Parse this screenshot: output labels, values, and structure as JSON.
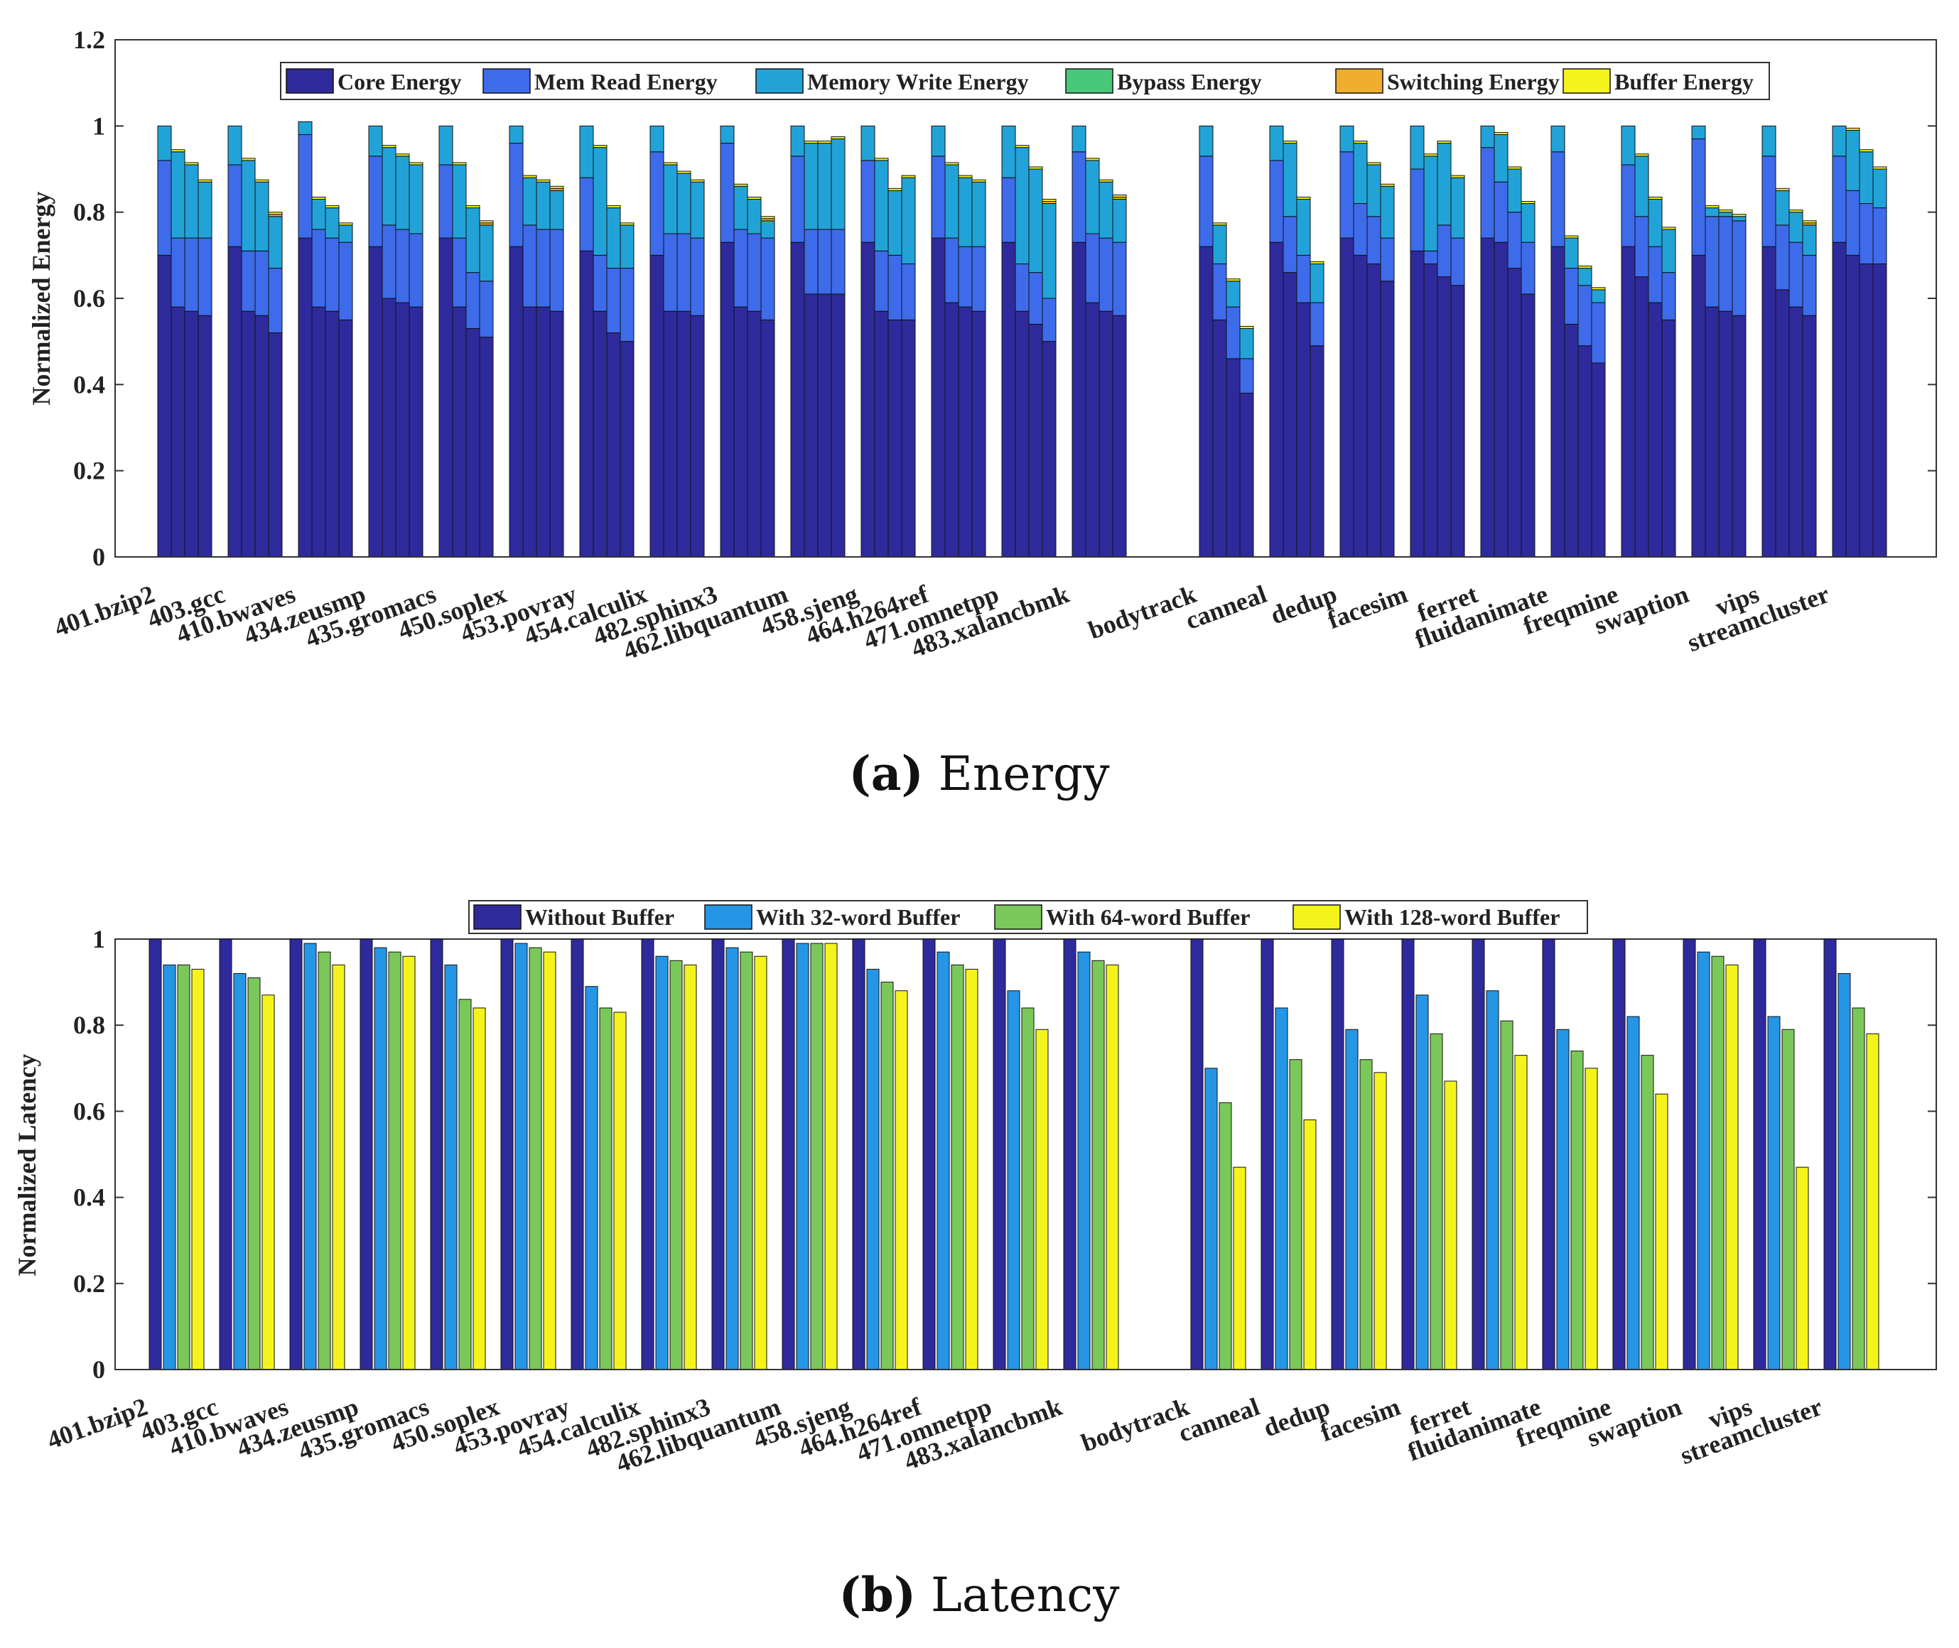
{
  "colors": {
    "core": "#2E2A9C",
    "mem_read": "#3D6BEA",
    "mem_write": "#22A3D8",
    "bypass": "#48C878",
    "switching": "#F0AE2E",
    "buffer": "#F4F41C",
    "lat_without": "#2E2A9C",
    "lat_32": "#2596E6",
    "lat_64": "#7BC85A",
    "lat_128": "#F4F41C"
  },
  "chart_data": [
    {
      "type": "bar",
      "stacked": true,
      "title": "",
      "ylabel": "Normalized Energy",
      "xlabel": "",
      "ylim": [
        0,
        1.2
      ],
      "yticks": [
        "0",
        "0.2",
        "0.4",
        "0.6",
        "0.8",
        "1",
        "1.2"
      ],
      "caption_letter": "(a)",
      "caption_text": " Energy",
      "categories": [
        "401.bzip2",
        "403.gcc",
        "410.bwaves",
        "434.zeusmp",
        "435.gromacs",
        "450.soplex",
        "453.povray",
        "454.calculix",
        "482.sphinx3",
        "462.libquantum",
        "458.sjeng",
        "464.h264ref",
        "471.omnetpp",
        "483.xalancbmk",
        "bodytrack",
        "canneal",
        "dedup",
        "facesim",
        "ferret",
        "fluidanimate",
        "freqmine",
        "swaption",
        "vips",
        "streamcluster"
      ],
      "legend": [
        "Core Energy",
        "Mem Read Energy",
        "Memory Write Energy",
        "Bypass Energy",
        "Switching Energy",
        "Buffer Energy"
      ],
      "bars_per_group": 4,
      "groups": [
        [
          [
            0.7,
            0.22,
            0.08,
            0,
            0,
            0
          ],
          [
            0.58,
            0.16,
            0.2,
            0,
            0,
            0.005
          ],
          [
            0.57,
            0.17,
            0.17,
            0,
            0,
            0.005
          ],
          [
            0.56,
            0.18,
            0.13,
            0,
            0,
            0.005
          ]
        ],
        [
          [
            0.72,
            0.19,
            0.09,
            0,
            0,
            0
          ],
          [
            0.57,
            0.14,
            0.21,
            0,
            0,
            0.005
          ],
          [
            0.56,
            0.15,
            0.16,
            0,
            0,
            0.005
          ],
          [
            0.52,
            0.15,
            0.12,
            0,
            0.005,
            0.005
          ]
        ],
        [
          [
            0.74,
            0.24,
            0.03,
            0,
            0,
            0
          ],
          [
            0.58,
            0.18,
            0.07,
            0,
            0,
            0.005
          ],
          [
            0.57,
            0.17,
            0.07,
            0,
            0,
            0.005
          ],
          [
            0.55,
            0.18,
            0.04,
            0,
            0,
            0.005
          ]
        ],
        [
          [
            0.72,
            0.21,
            0.07,
            0,
            0,
            0
          ],
          [
            0.6,
            0.17,
            0.18,
            0,
            0,
            0.005
          ],
          [
            0.59,
            0.17,
            0.17,
            0,
            0,
            0.005
          ],
          [
            0.58,
            0.17,
            0.16,
            0,
            0,
            0.005
          ]
        ],
        [
          [
            0.74,
            0.17,
            0.09,
            0,
            0,
            0
          ],
          [
            0.58,
            0.16,
            0.17,
            0,
            0,
            0.005
          ],
          [
            0.53,
            0.13,
            0.15,
            0,
            0,
            0.005
          ],
          [
            0.51,
            0.13,
            0.13,
            0,
            0.005,
            0.005
          ]
        ],
        [
          [
            0.72,
            0.24,
            0.04,
            0,
            0,
            0
          ],
          [
            0.58,
            0.19,
            0.11,
            0,
            0,
            0.005
          ],
          [
            0.58,
            0.18,
            0.11,
            0,
            0,
            0.005
          ],
          [
            0.57,
            0.19,
            0.09,
            0,
            0.005,
            0.005
          ]
        ],
        [
          [
            0.71,
            0.17,
            0.12,
            0,
            0,
            0
          ],
          [
            0.57,
            0.13,
            0.25,
            0,
            0,
            0.005
          ],
          [
            0.52,
            0.15,
            0.14,
            0,
            0,
            0.005
          ],
          [
            0.5,
            0.17,
            0.1,
            0,
            0,
            0.005
          ]
        ],
        [
          [
            0.7,
            0.24,
            0.06,
            0,
            0,
            0
          ],
          [
            0.57,
            0.18,
            0.16,
            0,
            0,
            0.005
          ],
          [
            0.57,
            0.18,
            0.14,
            0,
            0,
            0.005
          ],
          [
            0.56,
            0.18,
            0.13,
            0,
            0,
            0.005
          ]
        ],
        [
          [
            0.73,
            0.23,
            0.04,
            0,
            0,
            0
          ],
          [
            0.58,
            0.18,
            0.1,
            0,
            0,
            0.005
          ],
          [
            0.57,
            0.18,
            0.08,
            0,
            0,
            0.005
          ],
          [
            0.55,
            0.19,
            0.04,
            0,
            0.005,
            0.005
          ]
        ],
        [
          [
            0.73,
            0.2,
            0.07,
            0,
            0,
            0
          ],
          [
            0.61,
            0.15,
            0.2,
            0,
            0,
            0.005
          ],
          [
            0.61,
            0.15,
            0.2,
            0,
            0,
            0.005
          ],
          [
            0.61,
            0.15,
            0.21,
            0,
            0,
            0.005
          ]
        ],
        [
          [
            0.73,
            0.19,
            0.08,
            0,
            0,
            0
          ],
          [
            0.57,
            0.14,
            0.21,
            0,
            0,
            0.005
          ],
          [
            0.55,
            0.15,
            0.15,
            0,
            0,
            0.005
          ],
          [
            0.55,
            0.13,
            0.2,
            0,
            0,
            0.005
          ]
        ],
        [
          [
            0.74,
            0.19,
            0.07,
            0,
            0,
            0
          ],
          [
            0.59,
            0.15,
            0.17,
            0,
            0,
            0.005
          ],
          [
            0.58,
            0.14,
            0.16,
            0,
            0,
            0.005
          ],
          [
            0.57,
            0.15,
            0.15,
            0,
            0,
            0.005
          ]
        ],
        [
          [
            0.73,
            0.15,
            0.12,
            0,
            0,
            0
          ],
          [
            0.57,
            0.11,
            0.27,
            0,
            0,
            0.005
          ],
          [
            0.54,
            0.12,
            0.24,
            0,
            0,
            0.005
          ],
          [
            0.5,
            0.1,
            0.22,
            0,
            0.005,
            0.005
          ]
        ],
        [
          [
            0.73,
            0.21,
            0.06,
            0,
            0,
            0
          ],
          [
            0.59,
            0.16,
            0.17,
            0,
            0,
            0.005
          ],
          [
            0.57,
            0.17,
            0.13,
            0,
            0,
            0.005
          ],
          [
            0.56,
            0.17,
            0.1,
            0,
            0.005,
            0.005
          ]
        ],
        [
          [
            0.72,
            0.21,
            0.07,
            0,
            0,
            0
          ],
          [
            0.55,
            0.13,
            0.09,
            0,
            0,
            0.005
          ],
          [
            0.46,
            0.12,
            0.06,
            0,
            0,
            0.005
          ],
          [
            0.38,
            0.08,
            0.07,
            0,
            0,
            0.005
          ]
        ],
        [
          [
            0.73,
            0.19,
            0.08,
            0,
            0,
            0
          ],
          [
            0.66,
            0.13,
            0.17,
            0,
            0,
            0.005
          ],
          [
            0.59,
            0.11,
            0.13,
            0,
            0,
            0.005
          ],
          [
            0.49,
            0.1,
            0.09,
            0,
            0,
            0.005
          ]
        ],
        [
          [
            0.74,
            0.2,
            0.06,
            0,
            0,
            0
          ],
          [
            0.7,
            0.12,
            0.14,
            0,
            0,
            0.005
          ],
          [
            0.68,
            0.11,
            0.12,
            0,
            0,
            0.005
          ],
          [
            0.64,
            0.1,
            0.12,
            0,
            0,
            0.005
          ]
        ],
        [
          [
            0.71,
            0.19,
            0.1,
            0,
            0,
            0
          ],
          [
            0.68,
            0.03,
            0.22,
            0,
            0,
            0.005
          ],
          [
            0.65,
            0.12,
            0.19,
            0,
            0,
            0.005
          ],
          [
            0.63,
            0.11,
            0.14,
            0,
            0,
            0.005
          ]
        ],
        [
          [
            0.74,
            0.21,
            0.05,
            0,
            0,
            0
          ],
          [
            0.73,
            0.14,
            0.11,
            0,
            0,
            0.005
          ],
          [
            0.67,
            0.13,
            0.1,
            0,
            0,
            0.005
          ],
          [
            0.61,
            0.12,
            0.09,
            0,
            0,
            0.005
          ]
        ],
        [
          [
            0.72,
            0.22,
            0.06,
            0,
            0,
            0
          ],
          [
            0.54,
            0.13,
            0.07,
            0,
            0,
            0.005
          ],
          [
            0.49,
            0.14,
            0.04,
            0,
            0,
            0.005
          ],
          [
            0.45,
            0.14,
            0.03,
            0,
            0,
            0.005
          ]
        ],
        [
          [
            0.72,
            0.19,
            0.09,
            0,
            0,
            0
          ],
          [
            0.65,
            0.14,
            0.14,
            0,
            0,
            0.005
          ],
          [
            0.59,
            0.13,
            0.11,
            0,
            0,
            0.005
          ],
          [
            0.55,
            0.11,
            0.1,
            0,
            0,
            0.005
          ]
        ],
        [
          [
            0.7,
            0.27,
            0.03,
            0,
            0,
            0
          ],
          [
            0.58,
            0.21,
            0.02,
            0,
            0,
            0.005
          ],
          [
            0.57,
            0.22,
            0.01,
            0,
            0,
            0.005
          ],
          [
            0.56,
            0.22,
            0.01,
            0,
            0,
            0.005
          ]
        ],
        [
          [
            0.72,
            0.21,
            0.07,
            0,
            0,
            0
          ],
          [
            0.62,
            0.15,
            0.08,
            0,
            0,
            0.005
          ],
          [
            0.58,
            0.15,
            0.07,
            0,
            0,
            0.005
          ],
          [
            0.56,
            0.14,
            0.07,
            0,
            0.005,
            0.005
          ]
        ],
        [
          [
            0.73,
            0.2,
            0.07,
            0,
            0,
            0
          ],
          [
            0.7,
            0.15,
            0.14,
            0,
            0,
            0.005
          ],
          [
            0.68,
            0.14,
            0.12,
            0,
            0,
            0.005
          ],
          [
            0.68,
            0.13,
            0.09,
            0,
            0,
            0.005
          ]
        ]
      ]
    },
    {
      "type": "bar",
      "stacked": false,
      "title": "",
      "ylabel": "Normalized Latency",
      "xlabel": "",
      "ylim": [
        0,
        1
      ],
      "yticks": [
        "0",
        "0.2",
        "0.4",
        "0.6",
        "0.8",
        "1"
      ],
      "caption_letter": "(b)",
      "caption_text": " Latency",
      "categories": [
        "401.bzip2",
        "403.gcc",
        "410.bwaves",
        "434.zeusmp",
        "435.gromacs",
        "450.soplex",
        "453.povray",
        "454.calculix",
        "482.sphinx3",
        "462.libquantum",
        "458.sjeng",
        "464.h264ref",
        "471.omnetpp",
        "483.xalancbmk",
        "bodytrack",
        "canneal",
        "dedup",
        "facesim",
        "ferret",
        "fluidanimate",
        "freqmine",
        "swaption",
        "vips",
        "streamcluster"
      ],
      "legend": [
        "Without Buffer",
        "With 32-word Buffer",
        "With 64-word Buffer",
        "With 128-word Buffer"
      ],
      "series": [
        {
          "name": "Without Buffer",
          "values": [
            1,
            1,
            1,
            1,
            1,
            1,
            1,
            1,
            1,
            1,
            1,
            1,
            1,
            1,
            1,
            1,
            1,
            1,
            1,
            1,
            1,
            1,
            1,
            1
          ]
        },
        {
          "name": "With 32-word Buffer",
          "values": [
            0.94,
            0.92,
            0.99,
            0.98,
            0.94,
            0.99,
            0.89,
            0.96,
            0.98,
            0.99,
            0.93,
            0.97,
            0.88,
            0.97,
            0.7,
            0.84,
            0.79,
            0.87,
            0.88,
            0.79,
            0.82,
            0.97,
            0.82,
            0.92
          ]
        },
        {
          "name": "With 64-word Buffer",
          "values": [
            0.94,
            0.91,
            0.97,
            0.97,
            0.86,
            0.98,
            0.84,
            0.95,
            0.97,
            0.99,
            0.9,
            0.94,
            0.84,
            0.95,
            0.62,
            0.72,
            0.72,
            0.78,
            0.81,
            0.74,
            0.73,
            0.96,
            0.79,
            0.84
          ]
        },
        {
          "name": "With 128-word Buffer",
          "values": [
            0.93,
            0.87,
            0.94,
            0.96,
            0.84,
            0.97,
            0.83,
            0.94,
            0.96,
            0.99,
            0.88,
            0.93,
            0.79,
            0.94,
            0.47,
            0.58,
            0.69,
            0.67,
            0.73,
            0.7,
            0.64,
            0.94,
            0.47,
            0.78
          ]
        }
      ]
    }
  ]
}
